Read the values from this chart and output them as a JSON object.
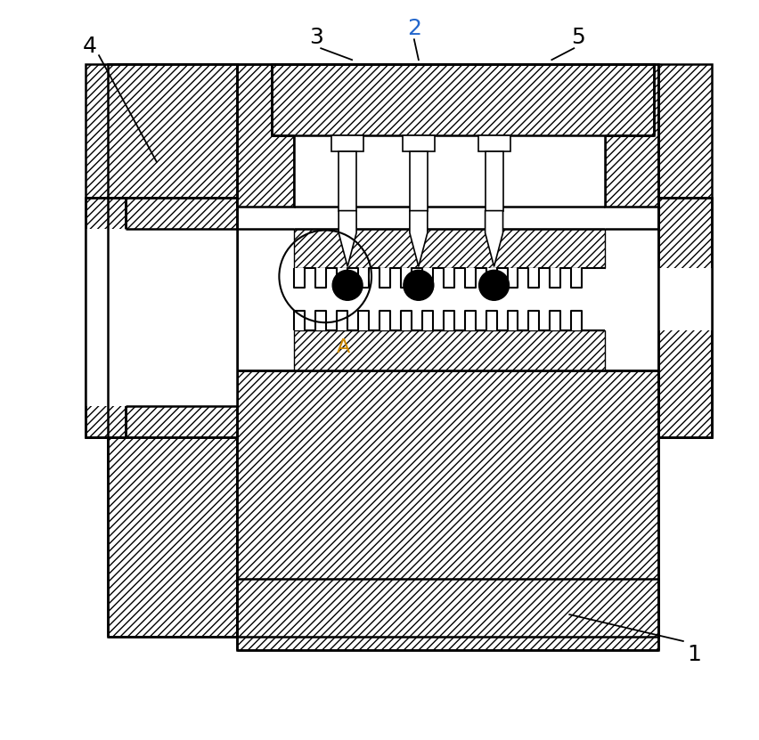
{
  "bg": "#ffffff",
  "lc": "#000000",
  "blue": "#2266cc",
  "gold": "#cc8800",
  "figsize": [
    8.52,
    8.31
  ],
  "dpi": 100
}
